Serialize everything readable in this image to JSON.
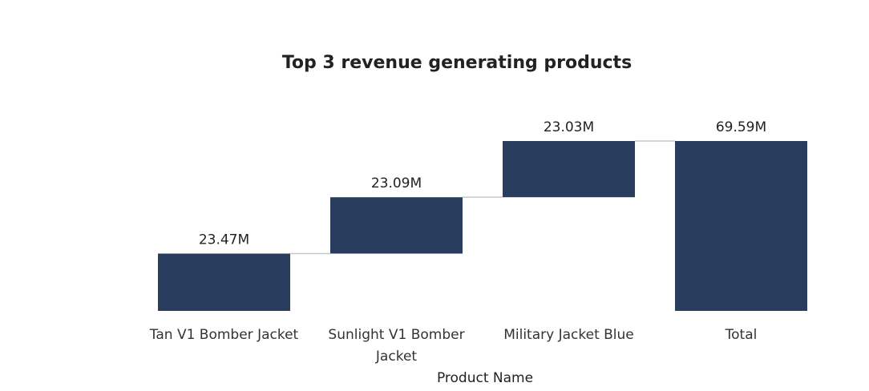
{
  "chart_data": {
    "type": "waterfall",
    "title": "Top 3 revenue generating products",
    "x_label": "Product Name",
    "categories": [
      "Tan V1 Bomber Jacket",
      "Sunlight V1 Bomber Jacket",
      "Military Jacket Blue",
      "Total"
    ],
    "values": [
      23.47,
      23.09,
      23.03,
      69.59
    ],
    "value_labels": [
      "23.47M",
      "23.09M",
      "23.03M",
      "69.59M"
    ],
    "show_total": true,
    "color": "#293e5e"
  }
}
